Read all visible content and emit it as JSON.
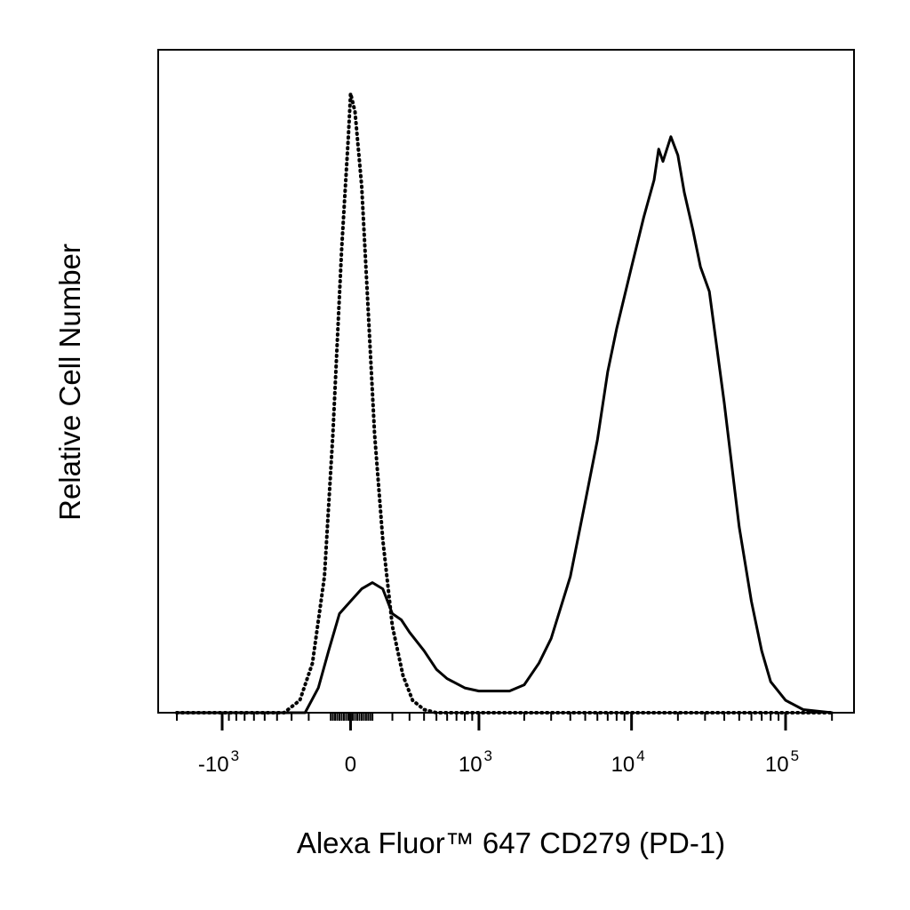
{
  "chart_data": {
    "type": "line",
    "title": "",
    "xlabel": "Alexa Fluor™ 647 CD279 (PD-1)",
    "ylabel": "Relative Cell Number",
    "x_scale": "biexponential",
    "xlim": [
      -2000,
      200000
    ],
    "ylim": [
      0,
      100
    ],
    "grid": false,
    "legend": "none",
    "x_ticks": [
      {
        "label": "-10",
        "exp": "3",
        "value": -1000
      },
      {
        "label": "0",
        "exp": "",
        "value": 0
      },
      {
        "label": "10",
        "exp": "3",
        "value": 1000
      },
      {
        "label": "10",
        "exp": "4",
        "value": 10000
      },
      {
        "label": "10",
        "exp": "5",
        "value": 100000
      }
    ],
    "series": [
      {
        "style": "dotted",
        "color": "#000000",
        "x": [
          -2000,
          -350,
          -250,
          -180,
          -120,
          -80,
          -40,
          -10,
          0,
          20,
          50,
          80,
          110,
          150,
          200,
          260,
          320,
          400,
          500,
          200000
        ],
        "y": [
          0,
          0,
          2,
          8,
          22,
          45,
          75,
          93,
          100,
          97,
          85,
          65,
          45,
          28,
          14,
          6,
          2,
          0.5,
          0,
          0
        ]
      },
      {
        "style": "solid",
        "color": "#000000",
        "x": [
          -2000,
          -220,
          -150,
          -100,
          -50,
          0,
          50,
          100,
          150,
          200,
          250,
          300,
          400,
          500,
          600,
          800,
          1000,
          1300,
          1600,
          2000,
          2500,
          3000,
          4000,
          5000,
          6000,
          7000,
          8000,
          10000,
          12000,
          14000,
          15000,
          16000,
          18000,
          20000,
          22000,
          25000,
          28000,
          32000,
          40000,
          50000,
          60000,
          70000,
          80000,
          100000,
          130000,
          200000
        ],
        "y": [
          0,
          0,
          4,
          10,
          16,
          18,
          20,
          21,
          20,
          16,
          15,
          13,
          10,
          7,
          5.5,
          4,
          3.5,
          3.5,
          3.5,
          4.5,
          8,
          12,
          22,
          34,
          44,
          55,
          62,
          72,
          80,
          86,
          91,
          89,
          93,
          90,
          84,
          78,
          72,
          68,
          50,
          30,
          18,
          10,
          5,
          2,
          0.5,
          0
        ]
      }
    ]
  }
}
